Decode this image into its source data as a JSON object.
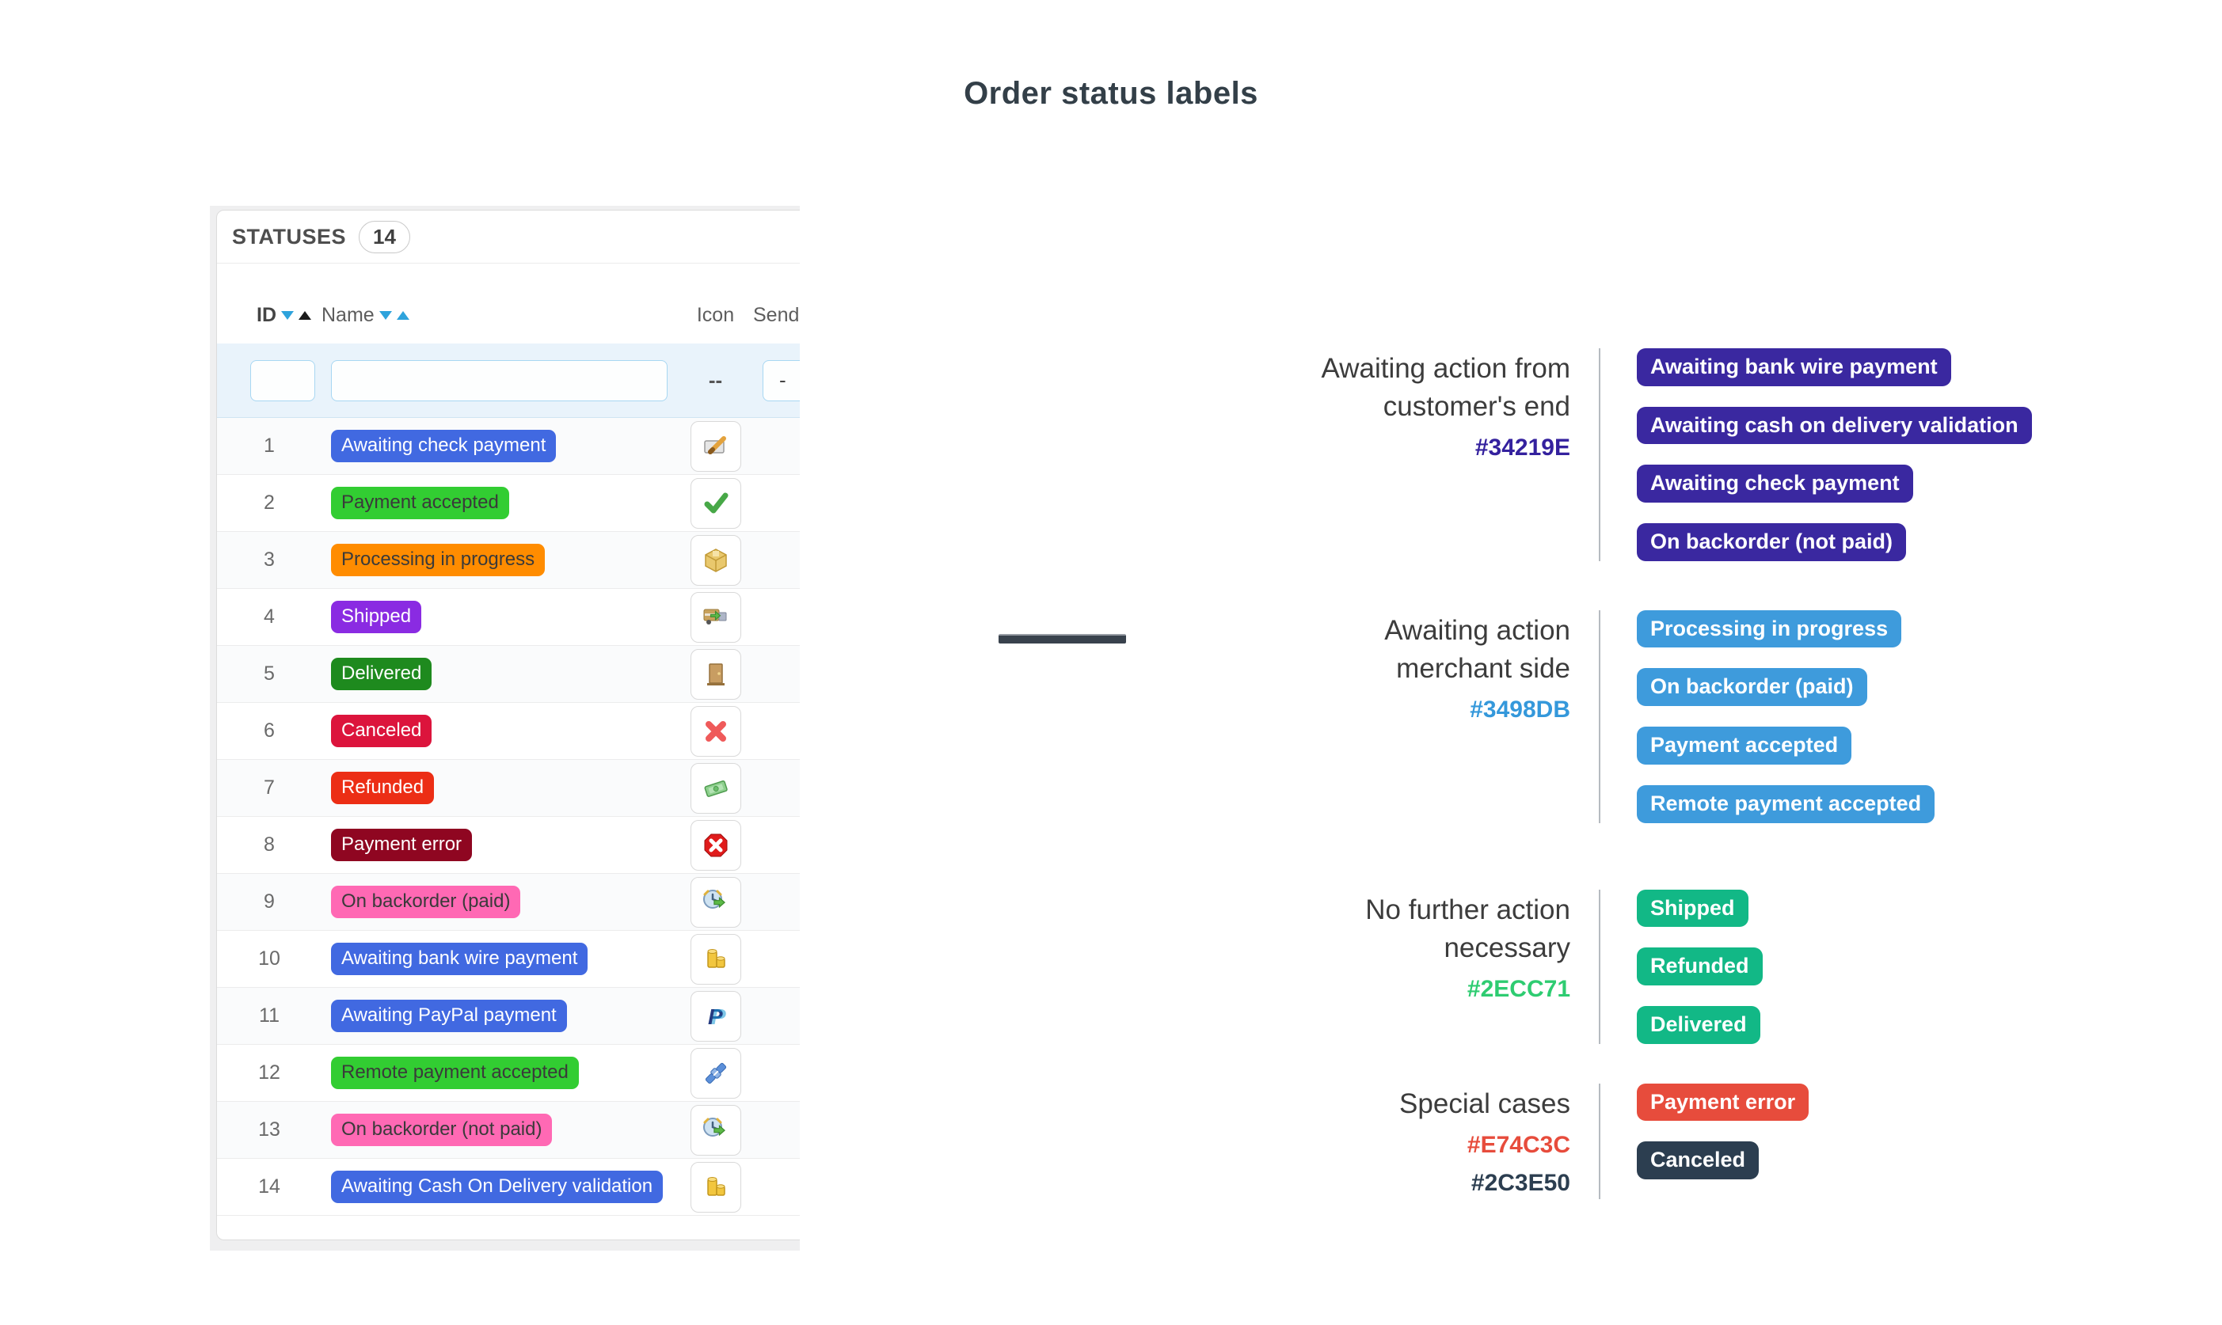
{
  "title": "Order status labels",
  "statuses_panel": {
    "heading": "STATUSES",
    "count": "14",
    "columns": {
      "id": "ID",
      "name": "Name",
      "icon": "Icon",
      "send": "Send"
    },
    "filters": {
      "icon_value": "--",
      "send_value": "-"
    },
    "rows": [
      {
        "id": "1",
        "name": "Awaiting check payment",
        "bg": "#4169E1",
        "fg": "#FFFFFF",
        "icon": "cheque-edit"
      },
      {
        "id": "2",
        "name": "Payment accepted",
        "bg": "#32CD32",
        "fg": "#3A3A3A",
        "icon": "check"
      },
      {
        "id": "3",
        "name": "Processing in progress",
        "bg": "#FF8C00",
        "fg": "#3A3A3A",
        "icon": "package"
      },
      {
        "id": "4",
        "name": "Shipped",
        "bg": "#8A2BE2",
        "fg": "#FFFFFF",
        "icon": "truck"
      },
      {
        "id": "5",
        "name": "Delivered",
        "bg": "#1E8A1E",
        "fg": "#FFFFFF",
        "icon": "door"
      },
      {
        "id": "6",
        "name": "Canceled",
        "bg": "#DC143C",
        "fg": "#FFFFFF",
        "icon": "cross"
      },
      {
        "id": "7",
        "name": "Refunded",
        "bg": "#EC2E15",
        "fg": "#FFFFFF",
        "icon": "banknote"
      },
      {
        "id": "8",
        "name": "Payment error",
        "bg": "#8F0621",
        "fg": "#FFFFFF",
        "icon": "error-octagon"
      },
      {
        "id": "9",
        "name": "On backorder (paid)",
        "bg": "#FF69B4",
        "fg": "#3A3A3A",
        "icon": "backorder-clock"
      },
      {
        "id": "10",
        "name": "Awaiting bank wire payment",
        "bg": "#4169E1",
        "fg": "#FFFFFF",
        "icon": "coins"
      },
      {
        "id": "11",
        "name": "Awaiting PayPal payment",
        "bg": "#4169E1",
        "fg": "#FFFFFF",
        "icon": "paypal"
      },
      {
        "id": "12",
        "name": "Remote payment accepted",
        "bg": "#32CD32",
        "fg": "#3A3A3A",
        "icon": "remote-plug"
      },
      {
        "id": "13",
        "name": "On backorder (not paid)",
        "bg": "#FF69B4",
        "fg": "#3A3A3A",
        "icon": "backorder-clock"
      },
      {
        "id": "14",
        "name": "Awaiting Cash On Delivery validation",
        "bg": "#4169E1",
        "fg": "#FFFFFF",
        "icon": "coins"
      }
    ]
  },
  "groups": [
    {
      "heading_lines": [
        "Awaiting action from",
        "customer's end"
      ],
      "hex_codes": [
        {
          "code": "#34219E",
          "color": "#34219E"
        }
      ],
      "badges": [
        {
          "label": "Awaiting bank wire payment",
          "color": "#3A28A0"
        },
        {
          "label": "Awaiting cash on delivery validation",
          "color": "#3A28A0"
        },
        {
          "label": "Awaiting check payment",
          "color": "#3A28A0"
        },
        {
          "label": "On backorder (not paid)",
          "color": "#3A28A0"
        }
      ]
    },
    {
      "heading_lines": [
        "Awaiting action",
        "merchant side"
      ],
      "hex_codes": [
        {
          "code": "#3498DB",
          "color": "#3498DB"
        }
      ],
      "badges": [
        {
          "label": "Processing in progress",
          "color": "#3E9BDC"
        },
        {
          "label": "On backorder (paid)",
          "color": "#3E9BDC"
        },
        {
          "label": "Payment accepted",
          "color": "#3E9BDC"
        },
        {
          "label": "Remote payment accepted",
          "color": "#3E9BDC"
        }
      ]
    },
    {
      "heading_lines": [
        "No further action",
        "necessary"
      ],
      "hex_codes": [
        {
          "code": "#2ECC71",
          "color": "#2ECC71"
        }
      ],
      "badges": [
        {
          "label": "Shipped",
          "color": "#12B886"
        },
        {
          "label": "Refunded",
          "color": "#12B886"
        },
        {
          "label": "Delivered",
          "color": "#12B886"
        }
      ]
    },
    {
      "heading_lines": [
        "Special cases"
      ],
      "hex_codes": [
        {
          "code": "#E74C3C",
          "color": "#E74C3C"
        },
        {
          "code": "#2C3E50",
          "color": "#2C3E50"
        }
      ],
      "badges": [
        {
          "label": "Payment error",
          "color": "#E74C3C"
        },
        {
          "label": "Canceled",
          "color": "#2C3E50"
        }
      ]
    }
  ]
}
